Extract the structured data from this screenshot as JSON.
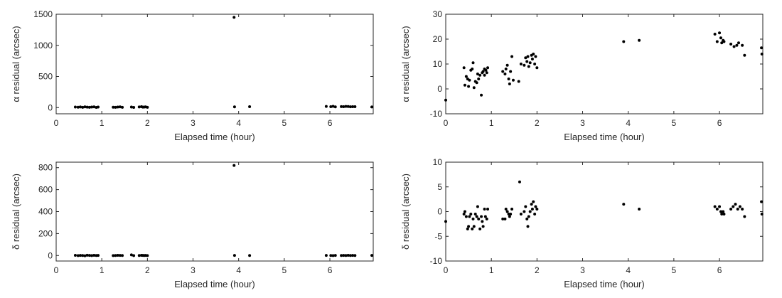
{
  "chart_data": [
    {
      "type": "scatter",
      "title": "",
      "xlabel": "Elapsed time (hour)",
      "ylabel": "α residual (arcsec)",
      "xlim": [
        0,
        6.95
      ],
      "ylim": [
        -100,
        1500
      ],
      "xticks": [
        0,
        1,
        2,
        3,
        4,
        5,
        6
      ],
      "yticks": [
        0,
        500,
        1000,
        1500
      ],
      "grid": false,
      "x": [
        0.42,
        0.48,
        0.53,
        0.58,
        0.63,
        0.68,
        0.73,
        0.78,
        0.83,
        0.88,
        0.92,
        1.25,
        1.3,
        1.35,
        1.4,
        1.45,
        1.65,
        1.7,
        1.82,
        1.87,
        1.9,
        1.93,
        1.96,
        2.0,
        3.9,
        3.91,
        4.24,
        5.92,
        6.02,
        6.07,
        6.12,
        6.25,
        6.3,
        6.35,
        6.4,
        6.45,
        6.5,
        6.55,
        6.92
      ],
      "y": [
        8,
        6,
        10,
        5,
        12,
        7,
        4,
        9,
        11,
        3,
        8,
        6,
        5,
        9,
        12,
        4,
        8,
        3,
        10,
        14,
        7,
        9,
        12,
        5,
        1450,
        12,
        15,
        18,
        15,
        20,
        12,
        16,
        14,
        19,
        17,
        13,
        15,
        14,
        10
      ]
    },
    {
      "type": "scatter",
      "title": "",
      "xlabel": "Elapsed time (hour)",
      "ylabel": "α residual (arcsec)",
      "xlim": [
        0,
        6.95
      ],
      "ylim": [
        -10,
        30
      ],
      "xticks": [
        0,
        1,
        2,
        3,
        4,
        5,
        6
      ],
      "yticks": [
        -10,
        0,
        10,
        20,
        30
      ],
      "grid": false,
      "x": [
        0.0,
        0.4,
        0.42,
        0.45,
        0.48,
        0.5,
        0.52,
        0.55,
        0.58,
        0.6,
        0.62,
        0.65,
        0.68,
        0.7,
        0.72,
        0.75,
        0.78,
        0.8,
        0.82,
        0.85,
        0.85,
        0.88,
        0.9,
        0.92,
        1.25,
        1.3,
        1.32,
        1.35,
        1.38,
        1.4,
        1.42,
        1.45,
        1.48,
        1.6,
        1.65,
        1.72,
        1.75,
        1.78,
        1.8,
        1.82,
        1.85,
        1.88,
        1.9,
        1.92,
        1.95,
        1.97,
        2.0,
        3.9,
        4.24,
        5.9,
        5.95,
        6.0,
        6.03,
        6.05,
        6.08,
        6.1,
        6.25,
        6.32,
        6.38,
        6.42,
        6.5,
        6.55,
        6.92,
        6.93
      ],
      "y": [
        -4.5,
        8.5,
        1.5,
        5,
        4,
        1,
        3.5,
        7.5,
        8,
        10.5,
        0.5,
        3,
        2.5,
        6,
        4,
        5.5,
        -2.5,
        6.5,
        7,
        8,
        5.5,
        7.5,
        6.5,
        8.5,
        7,
        6,
        8,
        9.5,
        4,
        2,
        7,
        13,
        3.5,
        3,
        10,
        9.5,
        12.5,
        11,
        13,
        9,
        10.5,
        13.5,
        12,
        14,
        10,
        13,
        8.5,
        19,
        19.5,
        22,
        19,
        22.5,
        20.5,
        18.5,
        19.5,
        19,
        18,
        17,
        17.5,
        18.5,
        17.5,
        13.5,
        16.5,
        14
      ]
    },
    {
      "type": "scatter",
      "title": "",
      "xlabel": "Elapsed time (hour)",
      "ylabel": "δ residual (arcsec)",
      "xlim": [
        0,
        6.95
      ],
      "ylim": [
        -50,
        850
      ],
      "xticks": [
        0,
        1,
        2,
        3,
        4,
        5,
        6
      ],
      "yticks": [
        0,
        200,
        400,
        600,
        800
      ],
      "grid": false,
      "x": [
        0.42,
        0.48,
        0.53,
        0.58,
        0.63,
        0.68,
        0.73,
        0.78,
        0.83,
        0.88,
        0.92,
        1.25,
        1.3,
        1.35,
        1.4,
        1.45,
        1.65,
        1.7,
        1.82,
        1.87,
        1.9,
        1.93,
        1.96,
        2.0,
        3.9,
        3.91,
        4.24,
        5.92,
        6.02,
        6.07,
        6.12,
        6.25,
        6.3,
        6.35,
        6.4,
        6.45,
        6.5,
        6.55,
        6.92
      ],
      "y": [
        2,
        -1,
        1,
        0,
        -2,
        3,
        1,
        -1,
        2,
        0,
        1,
        -1,
        0,
        2,
        1,
        0,
        6,
        -1,
        0,
        2,
        1,
        0,
        1,
        -1,
        820,
        1,
        0,
        1,
        0,
        -1,
        1,
        0,
        1,
        0,
        2,
        0,
        1,
        0,
        1
      ]
    },
    {
      "type": "scatter",
      "title": "",
      "xlabel": "Elapsed time (hour)",
      "ylabel": "δ residual (arcsec)",
      "xlim": [
        0,
        6.95
      ],
      "ylim": [
        -10,
        10
      ],
      "xticks": [
        0,
        1,
        2,
        3,
        4,
        5,
        6
      ],
      "yticks": [
        -10,
        -5,
        0,
        5,
        10
      ],
      "grid": false,
      "x": [
        0.0,
        0.4,
        0.42,
        0.45,
        0.48,
        0.5,
        0.52,
        0.55,
        0.58,
        0.6,
        0.62,
        0.65,
        0.68,
        0.7,
        0.72,
        0.75,
        0.78,
        0.8,
        0.82,
        0.85,
        0.87,
        0.9,
        0.92,
        1.25,
        1.3,
        1.32,
        1.35,
        1.38,
        1.4,
        1.42,
        1.45,
        1.62,
        1.65,
        1.72,
        1.75,
        1.78,
        1.8,
        1.82,
        1.85,
        1.88,
        1.9,
        1.92,
        1.95,
        1.97,
        2.0,
        3.9,
        4.24,
        5.9,
        5.95,
        6.0,
        6.03,
        6.05,
        6.08,
        6.1,
        6.25,
        6.3,
        6.35,
        6.4,
        6.45,
        6.5,
        6.55,
        6.92,
        6.93
      ],
      "y": [
        -2,
        -0.5,
        0,
        -1,
        -3.5,
        -3,
        -1,
        -0.5,
        -3.5,
        -1.5,
        -3,
        -0.5,
        -1,
        1,
        -1.5,
        -3.5,
        -1,
        -2,
        -3,
        0.5,
        -1,
        -1.5,
        0.5,
        -1.5,
        -1.5,
        0.5,
        0,
        -0.5,
        -1,
        -0.5,
        0.5,
        6,
        -0.5,
        0,
        1,
        -1.5,
        -3,
        -1,
        0,
        1.5,
        0.5,
        2,
        -0.5,
        1,
        0.5,
        1.5,
        0.5,
        1,
        0.5,
        1,
        0,
        -0.5,
        0,
        -0.5,
        0.5,
        1,
        1.5,
        0.5,
        1,
        0.5,
        -1,
        2,
        -0.5
      ]
    }
  ]
}
